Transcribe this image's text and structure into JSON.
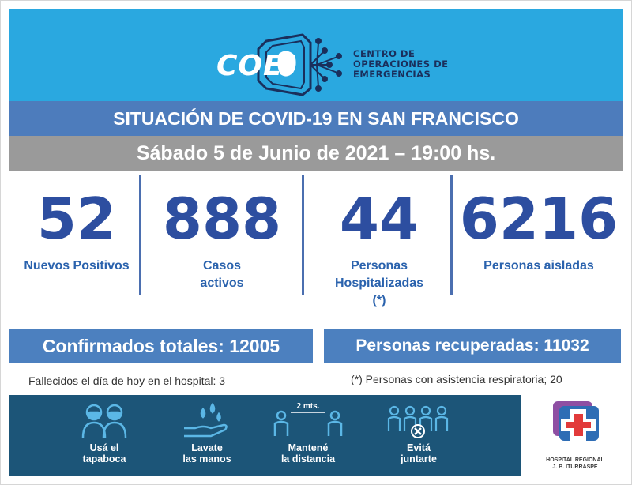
{
  "header": {
    "logo_text": "COE",
    "org_lines": [
      "CENTRO DE",
      "OPERACIONES DE",
      "EMERGENCIAS"
    ]
  },
  "title": "SITUACIÓN DE COVID-19 EN SAN FRANCISCO",
  "date": "Sábado 5 de Junio de 2021 – 19:00 hs.",
  "stats": [
    {
      "value": "52",
      "label_lines": [
        "Nuevos Positivos"
      ]
    },
    {
      "value": "888",
      "label_lines": [
        "Casos",
        "activos"
      ]
    },
    {
      "value": "44",
      "label_lines": [
        "Personas",
        "Hospitalizadas",
        "(*)"
      ]
    },
    {
      "value": "6216",
      "label_lines": [
        "Personas aisladas"
      ]
    }
  ],
  "totals": {
    "confirmed": "Confirmados totales: 12005",
    "recovered": "Personas recuperadas: 11032"
  },
  "notes": {
    "deaths": "Fallecidos el día de hoy en el hospital: 3",
    "respiratory": "(*) Personas con asistencia respiratoria; 20"
  },
  "tips": [
    {
      "icon": "face-mask-icon",
      "lines": [
        "Usá el",
        "tapaboca"
      ]
    },
    {
      "icon": "hand-wash-icon",
      "lines": [
        "Lavate",
        "las manos"
      ]
    },
    {
      "icon": "distance-icon",
      "lines": [
        "Mantené",
        "la distancia"
      ],
      "distance_label": "2 mts."
    },
    {
      "icon": "no-crowd-icon",
      "lines": [
        "Evitá",
        "juntarte"
      ]
    }
  ],
  "hospital": {
    "lines": [
      "HOSPITAL REGIONAL",
      "J. B. ITURRASPE"
    ]
  },
  "colors": {
    "header_bg": "#2aa8e0",
    "title_bg": "#4d7cbc",
    "date_bg": "#9a9a9a",
    "number": "#2d4ea0",
    "box_bg": "#4c80bf",
    "bottom_bg": "#1c5578"
  }
}
